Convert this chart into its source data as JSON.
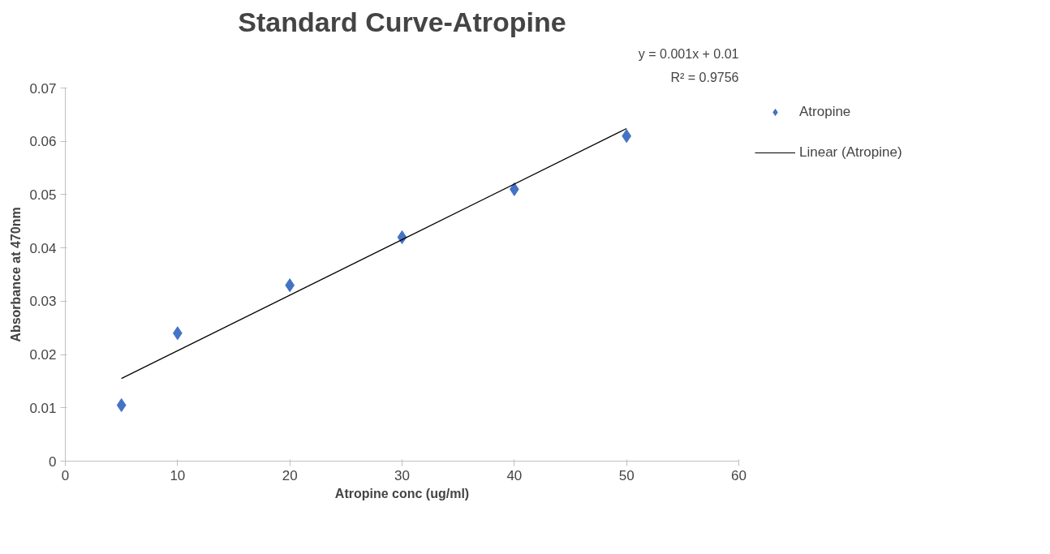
{
  "chart_data": {
    "type": "scatter",
    "title": "Standard Curve-Atropine",
    "xlabel": "Atropine conc (ug/ml)",
    "ylabel": "Absorbance at 470nm",
    "annotations": [
      "y = 0.001x + 0.01",
      "R² = 0.9756"
    ],
    "series": [
      {
        "name": "Atropine",
        "color": "#4472c4",
        "marker": "diamond",
        "x": [
          5,
          10,
          20,
          30,
          40,
          50
        ],
        "values": [
          0.0105,
          0.024,
          0.033,
          0.042,
          0.051,
          0.061
        ]
      },
      {
        "name": "Linear (Atropine)",
        "type": "line",
        "color": "#000000",
        "line_style": "solid",
        "x": [
          5,
          50
        ],
        "values": [
          0.0155,
          0.0624
        ]
      }
    ],
    "xlim": [
      0,
      60
    ],
    "ylim": [
      0,
      0.07
    ],
    "xticks": [
      0,
      10,
      20,
      30,
      40,
      50,
      60
    ],
    "yticks": [
      0,
      0.01,
      0.02,
      0.03,
      0.04,
      0.05,
      0.06,
      0.07
    ],
    "grid": false,
    "legend": "right"
  }
}
